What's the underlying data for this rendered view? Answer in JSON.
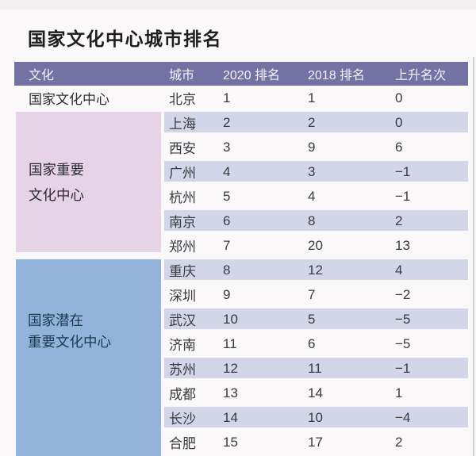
{
  "page": {
    "title": "国家文化中心城市排名"
  },
  "colors": {
    "header_bg": "#7471a4",
    "header_text": "#f3f3f8",
    "row_stripe": "#d2d6e8",
    "group_important_bg": "#e6d3e6",
    "group_potential_bg": "#92b4db",
    "right_accent_line": "#cbd9d2"
  },
  "group_blocks": {
    "national": {
      "label": "国家文化中心"
    },
    "important": {
      "line1": "国家重要",
      "line2": "文化中心"
    },
    "potential": {
      "line1": "国家潜在",
      "line2": "重要文化中心"
    }
  },
  "chart_data": {
    "type": "table",
    "title": "国家文化中心城市排名",
    "headers": {
      "culture": "文化",
      "city": "城市",
      "rank_2020": "2020 排名",
      "rank_2018": "2018 排名",
      "change": "上升名次"
    },
    "groups": [
      {
        "culture": "国家文化中心",
        "cities": [
          "北京"
        ]
      },
      {
        "culture": "国家重要文化中心",
        "cities": [
          "上海",
          "西安",
          "广州",
          "杭州",
          "南京",
          "郑州"
        ]
      },
      {
        "culture": "国家潜在重要文化中心",
        "cities": [
          "重庆",
          "深圳",
          "武汉",
          "济南",
          "苏州",
          "成都",
          "长沙",
          "合肥"
        ]
      }
    ],
    "rows": [
      {
        "city": "北京",
        "rank_2020": 1,
        "rank_2018": 1,
        "change": 0
      },
      {
        "city": "上海",
        "rank_2020": 2,
        "rank_2018": 2,
        "change": 0
      },
      {
        "city": "西安",
        "rank_2020": 3,
        "rank_2018": 9,
        "change": 6
      },
      {
        "city": "广州",
        "rank_2020": 4,
        "rank_2018": 3,
        "change": -1
      },
      {
        "city": "杭州",
        "rank_2020": 5,
        "rank_2018": 4,
        "change": -1
      },
      {
        "city": "南京",
        "rank_2020": 6,
        "rank_2018": 8,
        "change": 2
      },
      {
        "city": "郑州",
        "rank_2020": 7,
        "rank_2018": 20,
        "change": 13
      },
      {
        "city": "重庆",
        "rank_2020": 8,
        "rank_2018": 12,
        "change": 4
      },
      {
        "city": "深圳",
        "rank_2020": 9,
        "rank_2018": 7,
        "change": -2
      },
      {
        "city": "武汉",
        "rank_2020": 10,
        "rank_2018": 5,
        "change": -5
      },
      {
        "city": "济南",
        "rank_2020": 11,
        "rank_2018": 6,
        "change": -5
      },
      {
        "city": "苏州",
        "rank_2020": 12,
        "rank_2018": 11,
        "change": -1
      },
      {
        "city": "成都",
        "rank_2020": 13,
        "rank_2018": 14,
        "change": 1
      },
      {
        "city": "长沙",
        "rank_2020": 14,
        "rank_2018": 10,
        "change": -4
      },
      {
        "city": "合肥",
        "rank_2020": 15,
        "rank_2018": 17,
        "change": 2
      }
    ]
  }
}
